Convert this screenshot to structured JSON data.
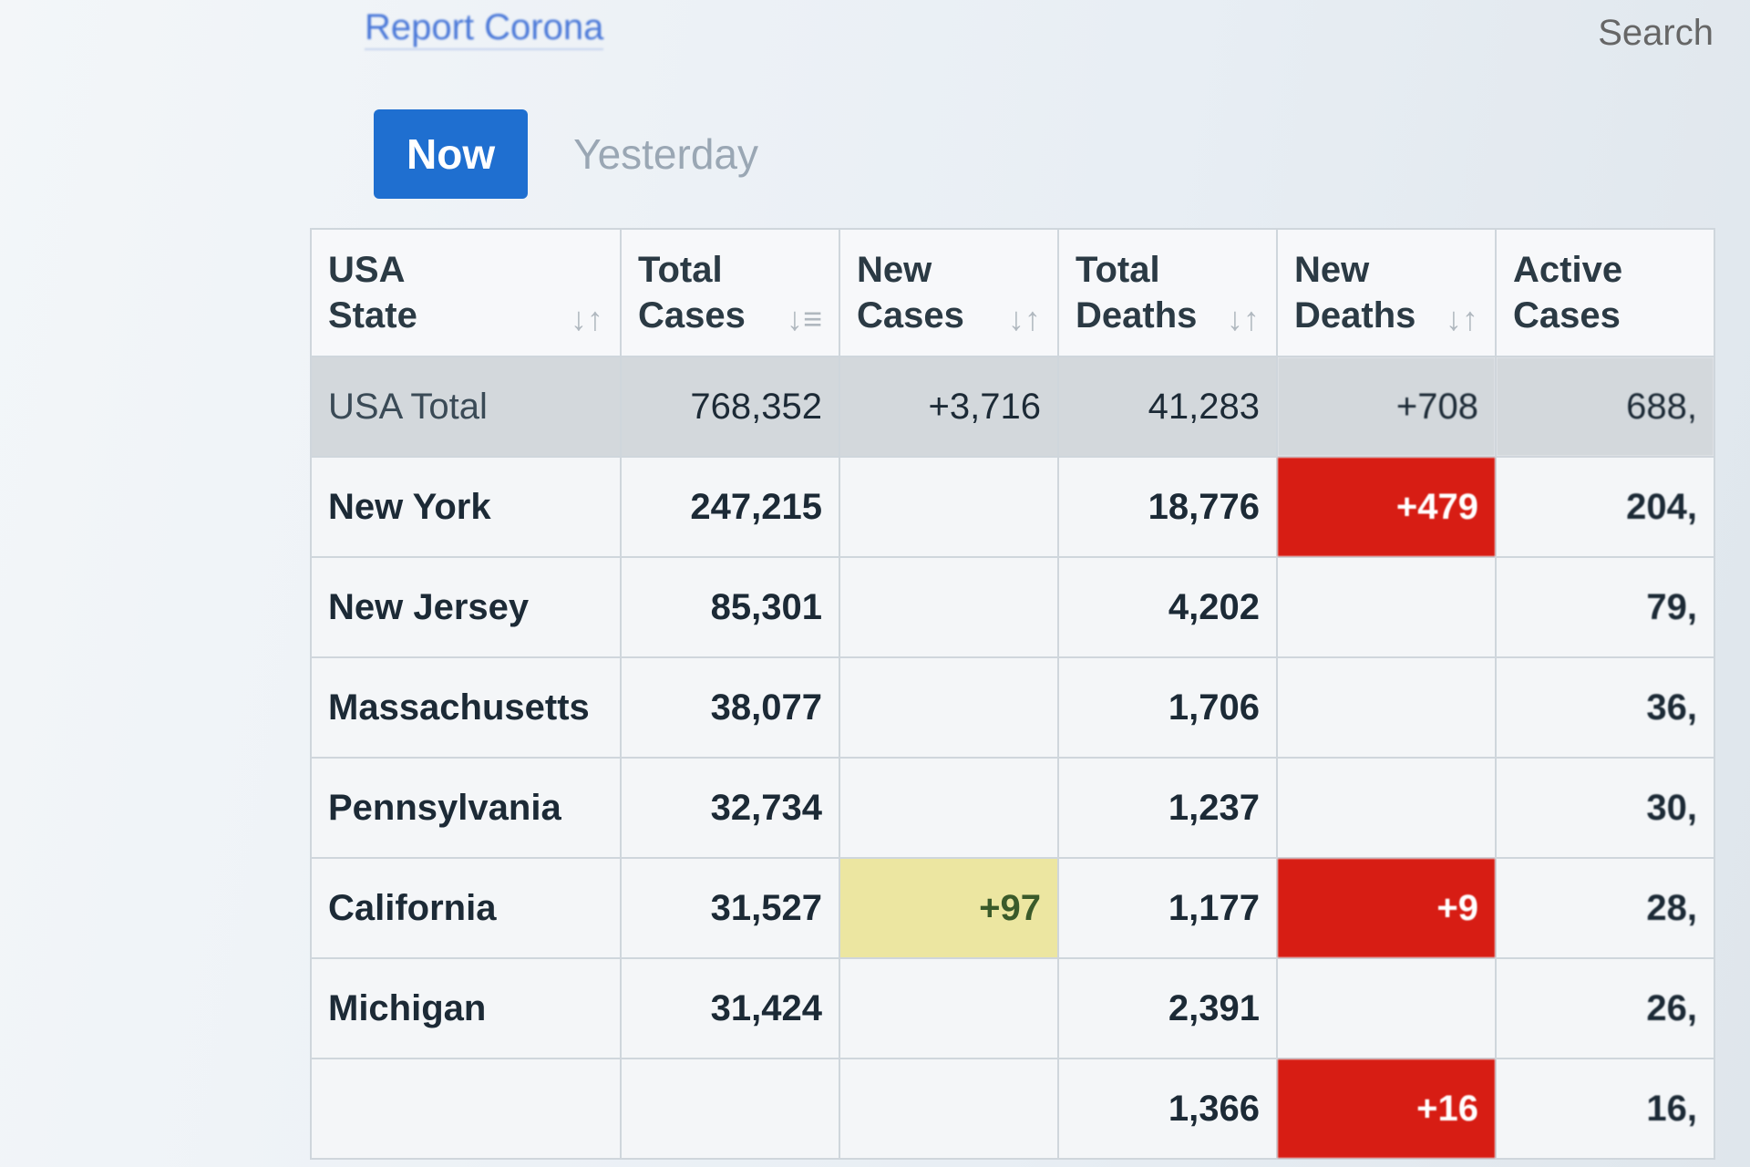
{
  "header": {
    "report_link": "Report Corona",
    "search_label": "Search"
  },
  "tabs": [
    {
      "label": "Now",
      "active": true
    },
    {
      "label": "Yesterday",
      "active": false
    }
  ],
  "colors": {
    "active_tab": "#1f6fd0",
    "new_deaths_highlight": "#d71d14",
    "new_cases_highlight": "#ece6a1",
    "total_row": "#d3d8dc"
  },
  "table": {
    "columns": [
      {
        "line1": "USA",
        "line2": "State",
        "sort_icon": "sort-icon"
      },
      {
        "line1": "Total",
        "line2": "Cases",
        "sort_icon": "sort-desc-icon"
      },
      {
        "line1": "New",
        "line2": "Cases",
        "sort_icon": "sort-icon"
      },
      {
        "line1": "Total",
        "line2": "Deaths",
        "sort_icon": "sort-icon"
      },
      {
        "line1": "New",
        "line2": "Deaths",
        "sort_icon": "sort-icon"
      },
      {
        "line1": "Active",
        "line2": "Cases",
        "sort_icon": ""
      }
    ],
    "rows": [
      {
        "state": "USA Total",
        "total_cases": "768,352",
        "new_cases": "+3,716",
        "total_deaths": "41,283",
        "new_deaths": "+708",
        "active": "688,"
      },
      {
        "state": "New York",
        "total_cases": "247,215",
        "new_cases": "",
        "total_deaths": "18,776",
        "new_deaths": "+479",
        "active": "204,"
      },
      {
        "state": "New Jersey",
        "total_cases": "85,301",
        "new_cases": "",
        "total_deaths": "4,202",
        "new_deaths": "",
        "active": "79,"
      },
      {
        "state": "Massachusetts",
        "total_cases": "38,077",
        "new_cases": "",
        "total_deaths": "1,706",
        "new_deaths": "",
        "active": "36,"
      },
      {
        "state": "Pennsylvania",
        "total_cases": "32,734",
        "new_cases": "",
        "total_deaths": "1,237",
        "new_deaths": "",
        "active": "30,"
      },
      {
        "state": "California",
        "total_cases": "31,527",
        "new_cases": "+97",
        "total_deaths": "1,177",
        "new_deaths": "+9",
        "active": "28,"
      },
      {
        "state": "Michigan",
        "total_cases": "31,424",
        "new_cases": "",
        "total_deaths": "2,391",
        "new_deaths": "",
        "active": "26,"
      },
      {
        "state": "",
        "total_cases": "",
        "new_cases": "",
        "total_deaths": "1,366",
        "new_deaths": "+16",
        "active": "16,"
      }
    ]
  }
}
